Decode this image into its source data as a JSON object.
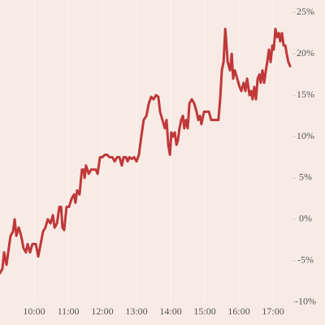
{
  "chart_data": {
    "type": "line",
    "x": [
      9.0,
      9.07,
      9.12,
      9.19,
      9.24,
      9.31,
      9.38,
      9.43,
      9.48,
      9.55,
      9.62,
      9.69,
      9.76,
      9.81,
      9.88,
      9.95,
      10.05,
      10.12,
      10.19,
      10.26,
      10.33,
      10.4,
      10.48,
      10.55,
      10.6,
      10.67,
      10.74,
      10.79,
      10.83,
      10.88,
      10.95,
      11.02,
      11.1,
      11.17,
      11.21,
      11.26,
      11.33,
      11.4,
      11.45,
      11.48,
      11.52,
      11.6,
      11.67,
      11.74,
      11.81,
      11.86,
      11.93,
      12.0,
      12.07,
      12.14,
      12.21,
      12.29,
      12.36,
      12.43,
      12.5,
      12.57,
      12.62,
      12.69,
      12.74,
      12.79,
      12.86,
      12.93,
      13.0,
      13.07,
      13.14,
      13.21,
      13.29,
      13.36,
      13.43,
      13.5,
      13.57,
      13.64,
      13.69,
      13.76,
      13.83,
      13.88,
      13.93,
      13.98,
      14.02,
      14.07,
      14.12,
      14.17,
      14.21,
      14.26,
      14.31,
      14.36,
      14.4,
      14.45,
      14.5,
      14.55,
      14.62,
      14.69,
      14.76,
      14.81,
      14.86,
      14.9,
      14.98,
      15.05,
      15.12,
      15.19,
      15.26,
      15.33,
      15.4,
      15.45,
      15.5,
      15.55,
      15.6,
      15.62,
      15.67,
      15.74,
      15.79,
      15.83,
      15.88,
      15.95,
      16.02,
      16.07,
      16.14,
      16.19,
      16.24,
      16.31,
      16.36,
      16.4,
      16.45,
      16.5,
      16.55,
      16.6,
      16.64,
      16.69,
      16.74,
      16.79,
      16.83,
      16.88,
      16.93,
      16.98,
      17.02,
      17.07,
      17.12,
      17.17,
      17.21,
      17.26,
      17.31,
      17.36,
      17.4,
      17.45,
      17.5
    ],
    "series": [
      {
        "color": "#c0383a",
        "values": [
          -6.5,
          -6,
          -4,
          -5.5,
          -4,
          -2,
          -1.5,
          0,
          -2,
          -1,
          -2,
          -3.5,
          -4,
          -3,
          -4,
          -3,
          -3,
          -4.5,
          -3,
          -1.5,
          -1,
          0,
          -0.5,
          0.5,
          -1,
          -0.5,
          1.5,
          1.5,
          -1,
          -1.3,
          1.5,
          1.5,
          2.5,
          3,
          2,
          3.5,
          3,
          6,
          6,
          5,
          6.5,
          5.5,
          6,
          6,
          6,
          5.5,
          7.5,
          7.5,
          7.8,
          7.8,
          7.5,
          7.5,
          7,
          7.5,
          7.5,
          6.5,
          7.5,
          7.5,
          7,
          7.5,
          7.3,
          7.5,
          7,
          7.8,
          10,
          12,
          12.5,
          14,
          14.8,
          14.5,
          15,
          14.8,
          13,
          12,
          11,
          12,
          9,
          7.8,
          10.5,
          10,
          10.5,
          9,
          9.5,
          11,
          12,
          12.5,
          11,
          12,
          11,
          14,
          14.5,
          14,
          13,
          12,
          12.5,
          11.5,
          13,
          13,
          13,
          12,
          12,
          12,
          12,
          14.5,
          18,
          19,
          23,
          22,
          19,
          18,
          20,
          17,
          18,
          17,
          16,
          15.5,
          16.5,
          15.5,
          17,
          15,
          15.5,
          14.5,
          16,
          14.5,
          17,
          17.5,
          16.5,
          18,
          16.5,
          18,
          19,
          20.5,
          19,
          21,
          20.5,
          23,
          22,
          22.5,
          21.5,
          22.5,
          21,
          21,
          20,
          19,
          18.5
        ]
      }
    ],
    "xlim": [
      9,
      17.57
    ],
    "xticks": [
      {
        "value": 10,
        "label": "10:00"
      },
      {
        "value": 11,
        "label": "11:00"
      },
      {
        "value": 12,
        "label": "12:00"
      },
      {
        "value": 13,
        "label": "13:00"
      },
      {
        "value": 14,
        "label": "14:00"
      },
      {
        "value": 15,
        "label": "15:00"
      },
      {
        "value": 16,
        "label": "16:00"
      },
      {
        "value": 17,
        "label": "17:00"
      }
    ],
    "ylim": [
      -11.5,
      26.5
    ],
    "yticks": [
      {
        "value": -10,
        "label": "-10%"
      },
      {
        "value": -5,
        "label": "-5%"
      },
      {
        "value": 0,
        "label": "0%"
      },
      {
        "value": 5,
        "label": "5%"
      },
      {
        "value": 10,
        "label": "10%"
      },
      {
        "value": 15,
        "label": "15%"
      },
      {
        "value": 20,
        "label": "20%"
      },
      {
        "value": 25,
        "label": "25%"
      }
    ],
    "grid": true
  }
}
